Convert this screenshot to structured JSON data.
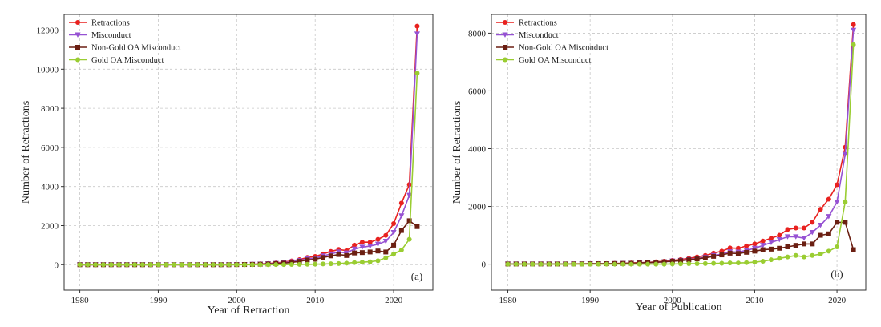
{
  "colors": {
    "retractions": "#e8211f",
    "misconduct": "#9652d3",
    "non_gold": "#6b1f12",
    "gold": "#9acd32",
    "grid": "#c8c8c8",
    "frame": "#333333"
  },
  "chart_data": [
    {
      "type": "line",
      "panel_label": "(a)",
      "xlabel": "Year of Retraction",
      "ylabel": "Number of Retractions",
      "xlim": [
        1978,
        2025
      ],
      "ylim": [
        -1300,
        12800
      ],
      "xticks": [
        1980,
        1990,
        2000,
        2010,
        2020
      ],
      "yticks": [
        0,
        2000,
        4000,
        6000,
        8000,
        10000,
        12000
      ],
      "grid": true,
      "legend_position": "top-left",
      "x": [
        1980,
        1981,
        1982,
        1983,
        1984,
        1985,
        1986,
        1987,
        1988,
        1989,
        1990,
        1991,
        1992,
        1993,
        1994,
        1995,
        1996,
        1997,
        1998,
        1999,
        2000,
        2001,
        2002,
        2003,
        2004,
        2005,
        2006,
        2007,
        2008,
        2009,
        2010,
        2011,
        2012,
        2013,
        2014,
        2015,
        2016,
        2017,
        2018,
        2019,
        2020,
        2021,
        2022,
        2023
      ],
      "series": [
        {
          "name": "Retractions",
          "key": "retractions",
          "marker": "circle",
          "values": [
            0,
            0,
            0,
            0,
            0,
            0,
            0,
            0,
            0,
            0,
            0,
            0,
            0,
            0,
            0,
            0,
            0,
            0,
            0,
            0,
            10,
            15,
            25,
            40,
            60,
            90,
            130,
            190,
            260,
            370,
            420,
            550,
            680,
            780,
            720,
            1000,
            1150,
            1150,
            1300,
            1500,
            2100,
            3150,
            4100,
            12200
          ]
        },
        {
          "name": "Misconduct",
          "key": "misconduct",
          "marker": "triangle-down",
          "values": [
            0,
            0,
            0,
            0,
            0,
            0,
            0,
            0,
            0,
            0,
            0,
            0,
            0,
            0,
            0,
            0,
            0,
            0,
            0,
            0,
            5,
            10,
            20,
            30,
            45,
            70,
            100,
            150,
            210,
            300,
            340,
            450,
            550,
            650,
            600,
            800,
            900,
            950,
            1050,
            1200,
            1650,
            2500,
            3550,
            11800
          ]
        },
        {
          "name": "Non-Gold OA Misconduct",
          "key": "non_gold",
          "marker": "square",
          "values": [
            0,
            0,
            0,
            0,
            0,
            0,
            0,
            0,
            0,
            0,
            0,
            0,
            0,
            0,
            0,
            0,
            0,
            0,
            0,
            0,
            5,
            10,
            15,
            25,
            35,
            55,
            80,
            120,
            170,
            240,
            280,
            370,
            450,
            520,
            470,
            600,
            620,
            650,
            700,
            650,
            1000,
            1750,
            2250,
            1950
          ]
        },
        {
          "name": "Gold OA Misconduct",
          "key": "gold",
          "marker": "circle",
          "values": [
            0,
            0,
            0,
            0,
            0,
            0,
            0,
            0,
            0,
            0,
            0,
            0,
            0,
            0,
            0,
            0,
            0,
            0,
            0,
            0,
            0,
            0,
            0,
            0,
            0,
            5,
            5,
            10,
            15,
            20,
            25,
            35,
            45,
            60,
            80,
            110,
            130,
            150,
            200,
            350,
            550,
            750,
            1300,
            9800
          ]
        }
      ]
    },
    {
      "type": "line",
      "panel_label": "(b)",
      "xlabel": "Year of Publication",
      "ylabel": "Number of Retractions",
      "xlim": [
        1978,
        2023.5
      ],
      "ylim": [
        -900,
        8650
      ],
      "xticks": [
        1980,
        1990,
        2000,
        2010,
        2020
      ],
      "yticks": [
        0,
        2000,
        4000,
        6000,
        8000
      ],
      "grid": true,
      "legend_position": "top-left",
      "x": [
        1980,
        1981,
        1982,
        1983,
        1984,
        1985,
        1986,
        1987,
        1988,
        1989,
        1990,
        1991,
        1992,
        1993,
        1994,
        1995,
        1996,
        1997,
        1998,
        1999,
        2000,
        2001,
        2002,
        2003,
        2004,
        2005,
        2006,
        2007,
        2008,
        2009,
        2010,
        2011,
        2012,
        2013,
        2014,
        2015,
        2016,
        2017,
        2018,
        2019,
        2020,
        2021,
        2022
      ],
      "series": [
        {
          "name": "Retractions",
          "key": "retractions",
          "marker": "circle",
          "values": [
            5,
            5,
            5,
            5,
            5,
            5,
            5,
            5,
            10,
            10,
            15,
            20,
            20,
            25,
            30,
            40,
            50,
            60,
            80,
            100,
            130,
            160,
            200,
            250,
            300,
            380,
            450,
            560,
            550,
            630,
            700,
            800,
            900,
            1000,
            1200,
            1250,
            1250,
            1450,
            1900,
            2250,
            2750,
            4050,
            8300
          ]
        },
        {
          "name": "Misconduct",
          "key": "misconduct",
          "marker": "triangle-down",
          "values": [
            5,
            5,
            5,
            5,
            5,
            5,
            5,
            5,
            8,
            8,
            12,
            15,
            15,
            20,
            25,
            30,
            40,
            50,
            65,
            80,
            110,
            130,
            160,
            200,
            240,
            300,
            350,
            430,
            420,
            480,
            550,
            650,
            750,
            850,
            950,
            950,
            900,
            1100,
            1350,
            1650,
            2150,
            3800,
            8100
          ]
        },
        {
          "name": "Non-Gold OA Misconduct",
          "key": "non_gold",
          "marker": "square",
          "values": [
            5,
            5,
            5,
            5,
            5,
            5,
            5,
            5,
            8,
            8,
            12,
            15,
            15,
            20,
            25,
            30,
            40,
            50,
            65,
            80,
            100,
            120,
            150,
            180,
            220,
            270,
            320,
            380,
            370,
            410,
            450,
            500,
            520,
            550,
            600,
            650,
            700,
            700,
            1000,
            1050,
            1450,
            1450,
            500
          ]
        },
        {
          "name": "Gold OA Misconduct",
          "key": "gold",
          "marker": "circle",
          "values": [
            0,
            0,
            0,
            0,
            0,
            0,
            0,
            0,
            0,
            0,
            0,
            0,
            0,
            0,
            0,
            0,
            0,
            0,
            0,
            0,
            5,
            10,
            15,
            15,
            20,
            25,
            30,
            40,
            40,
            50,
            70,
            100,
            150,
            200,
            250,
            300,
            250,
            300,
            350,
            450,
            600,
            2150,
            7600
          ]
        }
      ]
    }
  ]
}
